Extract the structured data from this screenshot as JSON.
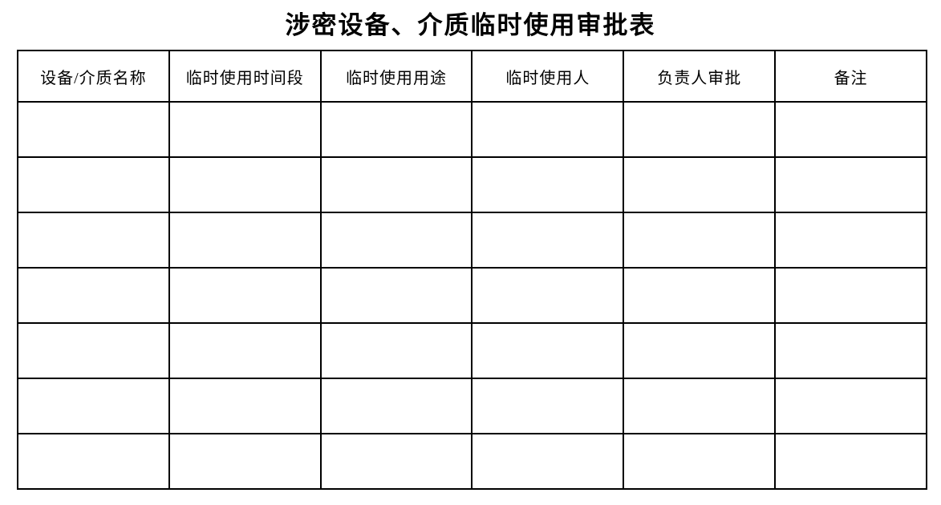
{
  "page": {
    "title": "涉密设备、介质临时使用审批表"
  },
  "table": {
    "headers": [
      "设备/介质名称",
      "临时使用时间段",
      "临时使用用途",
      "临时使用人",
      "负责人审批",
      "备注"
    ],
    "rows": [
      [
        "",
        "",
        "",
        "",
        "",
        ""
      ],
      [
        "",
        "",
        "",
        "",
        "",
        ""
      ],
      [
        "",
        "",
        "",
        "",
        "",
        ""
      ],
      [
        "",
        "",
        "",
        "",
        "",
        ""
      ],
      [
        "",
        "",
        "",
        "",
        "",
        ""
      ],
      [
        "",
        "",
        "",
        "",
        "",
        ""
      ],
      [
        "",
        "",
        "",
        "",
        "",
        ""
      ]
    ]
  },
  "colors": {
    "background": "#ffffff",
    "text": "#000000",
    "border": "#000000"
  }
}
